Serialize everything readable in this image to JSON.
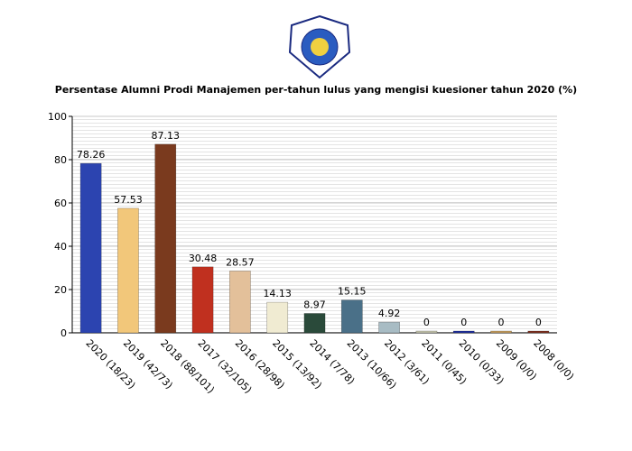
{
  "chart_data": {
    "type": "bar",
    "title": "Persentase Alumni Prodi Manajemen per-tahun lulus yang mengisi kuesioner tahun 2020 (%)",
    "categories": [
      "2020 (18/23)",
      "2019 (42/73)",
      "2018 (88/101)",
      "2017 (32/105)",
      "2016 (28/98)",
      "2015 (13/92)",
      "2014 (7/78)",
      "2013 (10/66)",
      "2012 (3/61)",
      "2011 (0/45)",
      "2010 (0/33)",
      "2009 (0/0)",
      "2008 (0/0)"
    ],
    "values": [
      78.26,
      57.53,
      87.13,
      30.48,
      28.57,
      14.13,
      8.97,
      15.15,
      4.92,
      0,
      0,
      0,
      0
    ],
    "colors": [
      "#2c44b0",
      "#f2c77a",
      "#7a3a1e",
      "#c0301f",
      "#e3c09a",
      "#f0ebd2",
      "#2a4a3a",
      "#4a7088",
      "#a8bcc4",
      "#c8c8b0",
      "#2030a0",
      "#c8a060",
      "#803020"
    ],
    "ylim": [
      0,
      100
    ],
    "yticks": [
      0,
      20,
      40,
      60,
      80,
      100
    ],
    "grid": true
  }
}
